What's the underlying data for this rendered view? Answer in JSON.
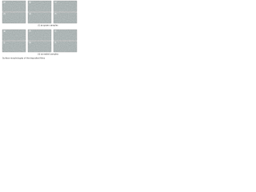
{
  "figure": {
    "panels": [
      {
        "labels": [
          "(a)",
          "(b)",
          "(c)",
          "(d)",
          "(e)",
          "(f)"
        ],
        "subcaption": "(i) as-grown samples"
      },
      {
        "labels": [
          "(g)",
          "(h)",
          "(i)",
          "(j)",
          "(k)",
          "(l)"
        ],
        "subcaption": "(ii) annealed samples"
      }
    ],
    "caption": "Surface morphologies of the deposited films"
  }
}
